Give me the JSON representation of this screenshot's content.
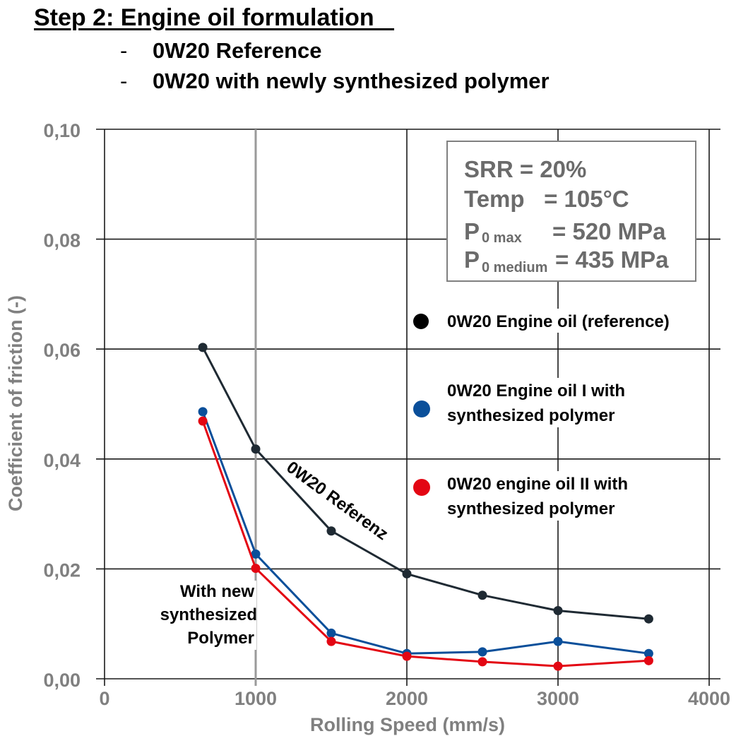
{
  "header": {
    "title": "Step 2: Engine oil formulation   ",
    "bullets": [
      "0W20 Reference",
      "0W20 with newly synthesized polymer"
    ]
  },
  "conditions": {
    "srr": "SRR = 20%",
    "temp": "Temp   = 105°C",
    "p0max_label": "P",
    "p0max_sub": "0 max",
    "p0max_value": "= 520 MPa",
    "p0med_label": "P",
    "p0med_sub": "0 medium",
    "p0med_value": "= 435 MPa"
  },
  "chart_data": {
    "type": "line",
    "xlabel": "Rolling Speed (mm/s)",
    "ylabel": "Coefficient of friction (-)",
    "xlim": [
      0,
      4000
    ],
    "ylim": [
      0,
      0.1
    ],
    "x_ticks": [
      0,
      1000,
      2000,
      3000,
      4000
    ],
    "x_tick_labels": [
      "0",
      "1000",
      "2000",
      "3000",
      "4000"
    ],
    "y_ticks": [
      0,
      0.02,
      0.04,
      0.06,
      0.08,
      0.1
    ],
    "y_tick_labels": [
      "0,00",
      "0,02",
      "0,04",
      "0,06",
      "0,08",
      "0,10"
    ],
    "grid": true,
    "legend_position": "right",
    "series": [
      {
        "name": "0W20 Engine oil (reference)",
        "color": "#1f2a33",
        "x": [
          650,
          1000,
          1500,
          2000,
          2500,
          3000,
          3600
        ],
        "values": [
          0.0603,
          0.0418,
          0.0269,
          0.0191,
          0.0152,
          0.0124,
          0.0109
        ]
      },
      {
        "name": "0W20 Engine oil I with synthesized polymer",
        "color": "#0a4f9a",
        "x": [
          650,
          1000,
          1500,
          2000,
          2500,
          3000,
          3600
        ],
        "values": [
          0.0486,
          0.0227,
          0.0083,
          0.0046,
          0.0049,
          0.0068,
          0.0046
        ]
      },
      {
        "name": "0W20 engine oil II with synthesized polymer",
        "color": "#e30613",
        "x": [
          650,
          1000,
          1500,
          2000,
          2500,
          3000,
          3600
        ],
        "values": [
          0.0469,
          0.0201,
          0.0068,
          0.0041,
          0.0031,
          0.0023,
          0.0033
        ]
      }
    ],
    "legend": [
      {
        "line1": "0W20 Engine oil (reference)",
        "line2": ""
      },
      {
        "line1": "0W20 Engine oil I with",
        "line2": "synthesized polymer"
      },
      {
        "line1": "0W20 engine oil II with",
        "line2": "synthesized polymer"
      }
    ],
    "annotations": {
      "reference_label": "0W20 Referenz",
      "polymer_label": [
        "With new",
        "synthesized",
        "Polymer"
      ]
    }
  }
}
